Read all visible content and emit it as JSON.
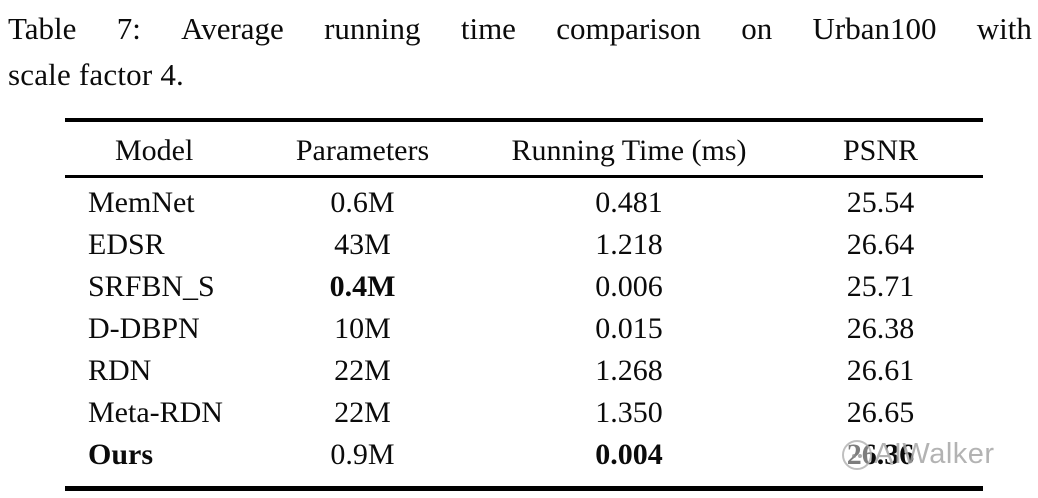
{
  "caption": {
    "line1": "Table 7: Average running time comparison on Urban100 with",
    "line2": "scale factor 4."
  },
  "table": {
    "columns": [
      "Model",
      "Parameters",
      "Running Time (ms)",
      "PSNR"
    ],
    "rows": [
      {
        "cells": [
          "MemNet",
          "0.6M",
          "0.481",
          "25.54"
        ],
        "bold": [
          false,
          false,
          false,
          false
        ]
      },
      {
        "cells": [
          "EDSR",
          "43M",
          "1.218",
          "26.64"
        ],
        "bold": [
          false,
          false,
          false,
          false
        ]
      },
      {
        "cells": [
          "SRFBN_S",
          "0.4M",
          "0.006",
          "25.71"
        ],
        "bold": [
          false,
          true,
          false,
          false
        ]
      },
      {
        "cells": [
          "D-DBPN",
          "10M",
          "0.015",
          "26.38"
        ],
        "bold": [
          false,
          false,
          false,
          false
        ]
      },
      {
        "cells": [
          "RDN",
          "22M",
          "1.268",
          "26.61"
        ],
        "bold": [
          false,
          false,
          false,
          false
        ]
      },
      {
        "cells": [
          "Meta-RDN",
          "22M",
          "1.350",
          "26.65"
        ],
        "bold": [
          false,
          false,
          false,
          false
        ]
      },
      {
        "cells": [
          "Ours",
          "0.9M",
          "0.004",
          "26.36"
        ],
        "bold": [
          true,
          false,
          true,
          true
        ]
      }
    ]
  },
  "watermark": {
    "text": "AIWalker",
    "color": "#a6a6a6"
  }
}
